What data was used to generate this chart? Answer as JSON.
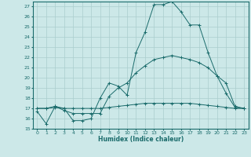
{
  "xlabel": "Humidex (Indice chaleur)",
  "ylabel": "",
  "bg_color": "#cce8e8",
  "grid_color": "#aacece",
  "line_color": "#1a6b6b",
  "xlim": [
    -0.5,
    23.5
  ],
  "ylim": [
    15,
    27.5
  ],
  "yticks": [
    15,
    16,
    17,
    18,
    19,
    20,
    21,
    22,
    23,
    24,
    25,
    26,
    27
  ],
  "xtick_labels": [
    "0",
    "1",
    "2",
    "3",
    "4",
    "5",
    "6",
    "7",
    "8",
    "9",
    "10",
    "11",
    "12",
    "13",
    "14",
    "15",
    "16",
    "17",
    "18",
    "19",
    "20",
    "21",
    "22",
    "23"
  ],
  "xticks": [
    0,
    1,
    2,
    3,
    4,
    5,
    6,
    7,
    8,
    9,
    10,
    11,
    12,
    13,
    14,
    15,
    16,
    17,
    18,
    19,
    20,
    21,
    22,
    23
  ],
  "series": [
    {
      "x": [
        0,
        1,
        2,
        3,
        4,
        5,
        6,
        7,
        8,
        9,
        10,
        11,
        12,
        13,
        14,
        15,
        16,
        17,
        18,
        19,
        20,
        21,
        22,
        23
      ],
      "y": [
        16.7,
        15.5,
        17.2,
        17.0,
        15.8,
        15.8,
        16.0,
        18.0,
        19.5,
        19.2,
        18.3,
        22.5,
        24.5,
        27.2,
        27.2,
        27.5,
        26.5,
        25.2,
        25.2,
        22.5,
        20.2,
        18.5,
        17.1,
        17.0
      ]
    },
    {
      "x": [
        0,
        1,
        2,
        3,
        4,
        5,
        6,
        7,
        8,
        9,
        10,
        11,
        12,
        13,
        14,
        15,
        16,
        17,
        18,
        19,
        20,
        21,
        22,
        23
      ],
      "y": [
        17.0,
        17.0,
        17.2,
        16.8,
        16.5,
        16.5,
        16.5,
        16.5,
        18.2,
        19.0,
        19.5,
        20.5,
        21.2,
        21.8,
        22.0,
        22.2,
        22.0,
        21.8,
        21.5,
        21.0,
        20.2,
        19.5,
        17.2,
        17.0
      ]
    },
    {
      "x": [
        0,
        1,
        2,
        3,
        4,
        5,
        6,
        7,
        8,
        9,
        10,
        11,
        12,
        13,
        14,
        15,
        16,
        17,
        18,
        19,
        20,
        21,
        22,
        23
      ],
      "y": [
        17.0,
        17.0,
        17.1,
        17.0,
        17.0,
        17.0,
        17.0,
        17.0,
        17.1,
        17.2,
        17.3,
        17.4,
        17.5,
        17.5,
        17.5,
        17.5,
        17.5,
        17.5,
        17.4,
        17.3,
        17.2,
        17.1,
        17.0,
        17.0
      ]
    }
  ]
}
